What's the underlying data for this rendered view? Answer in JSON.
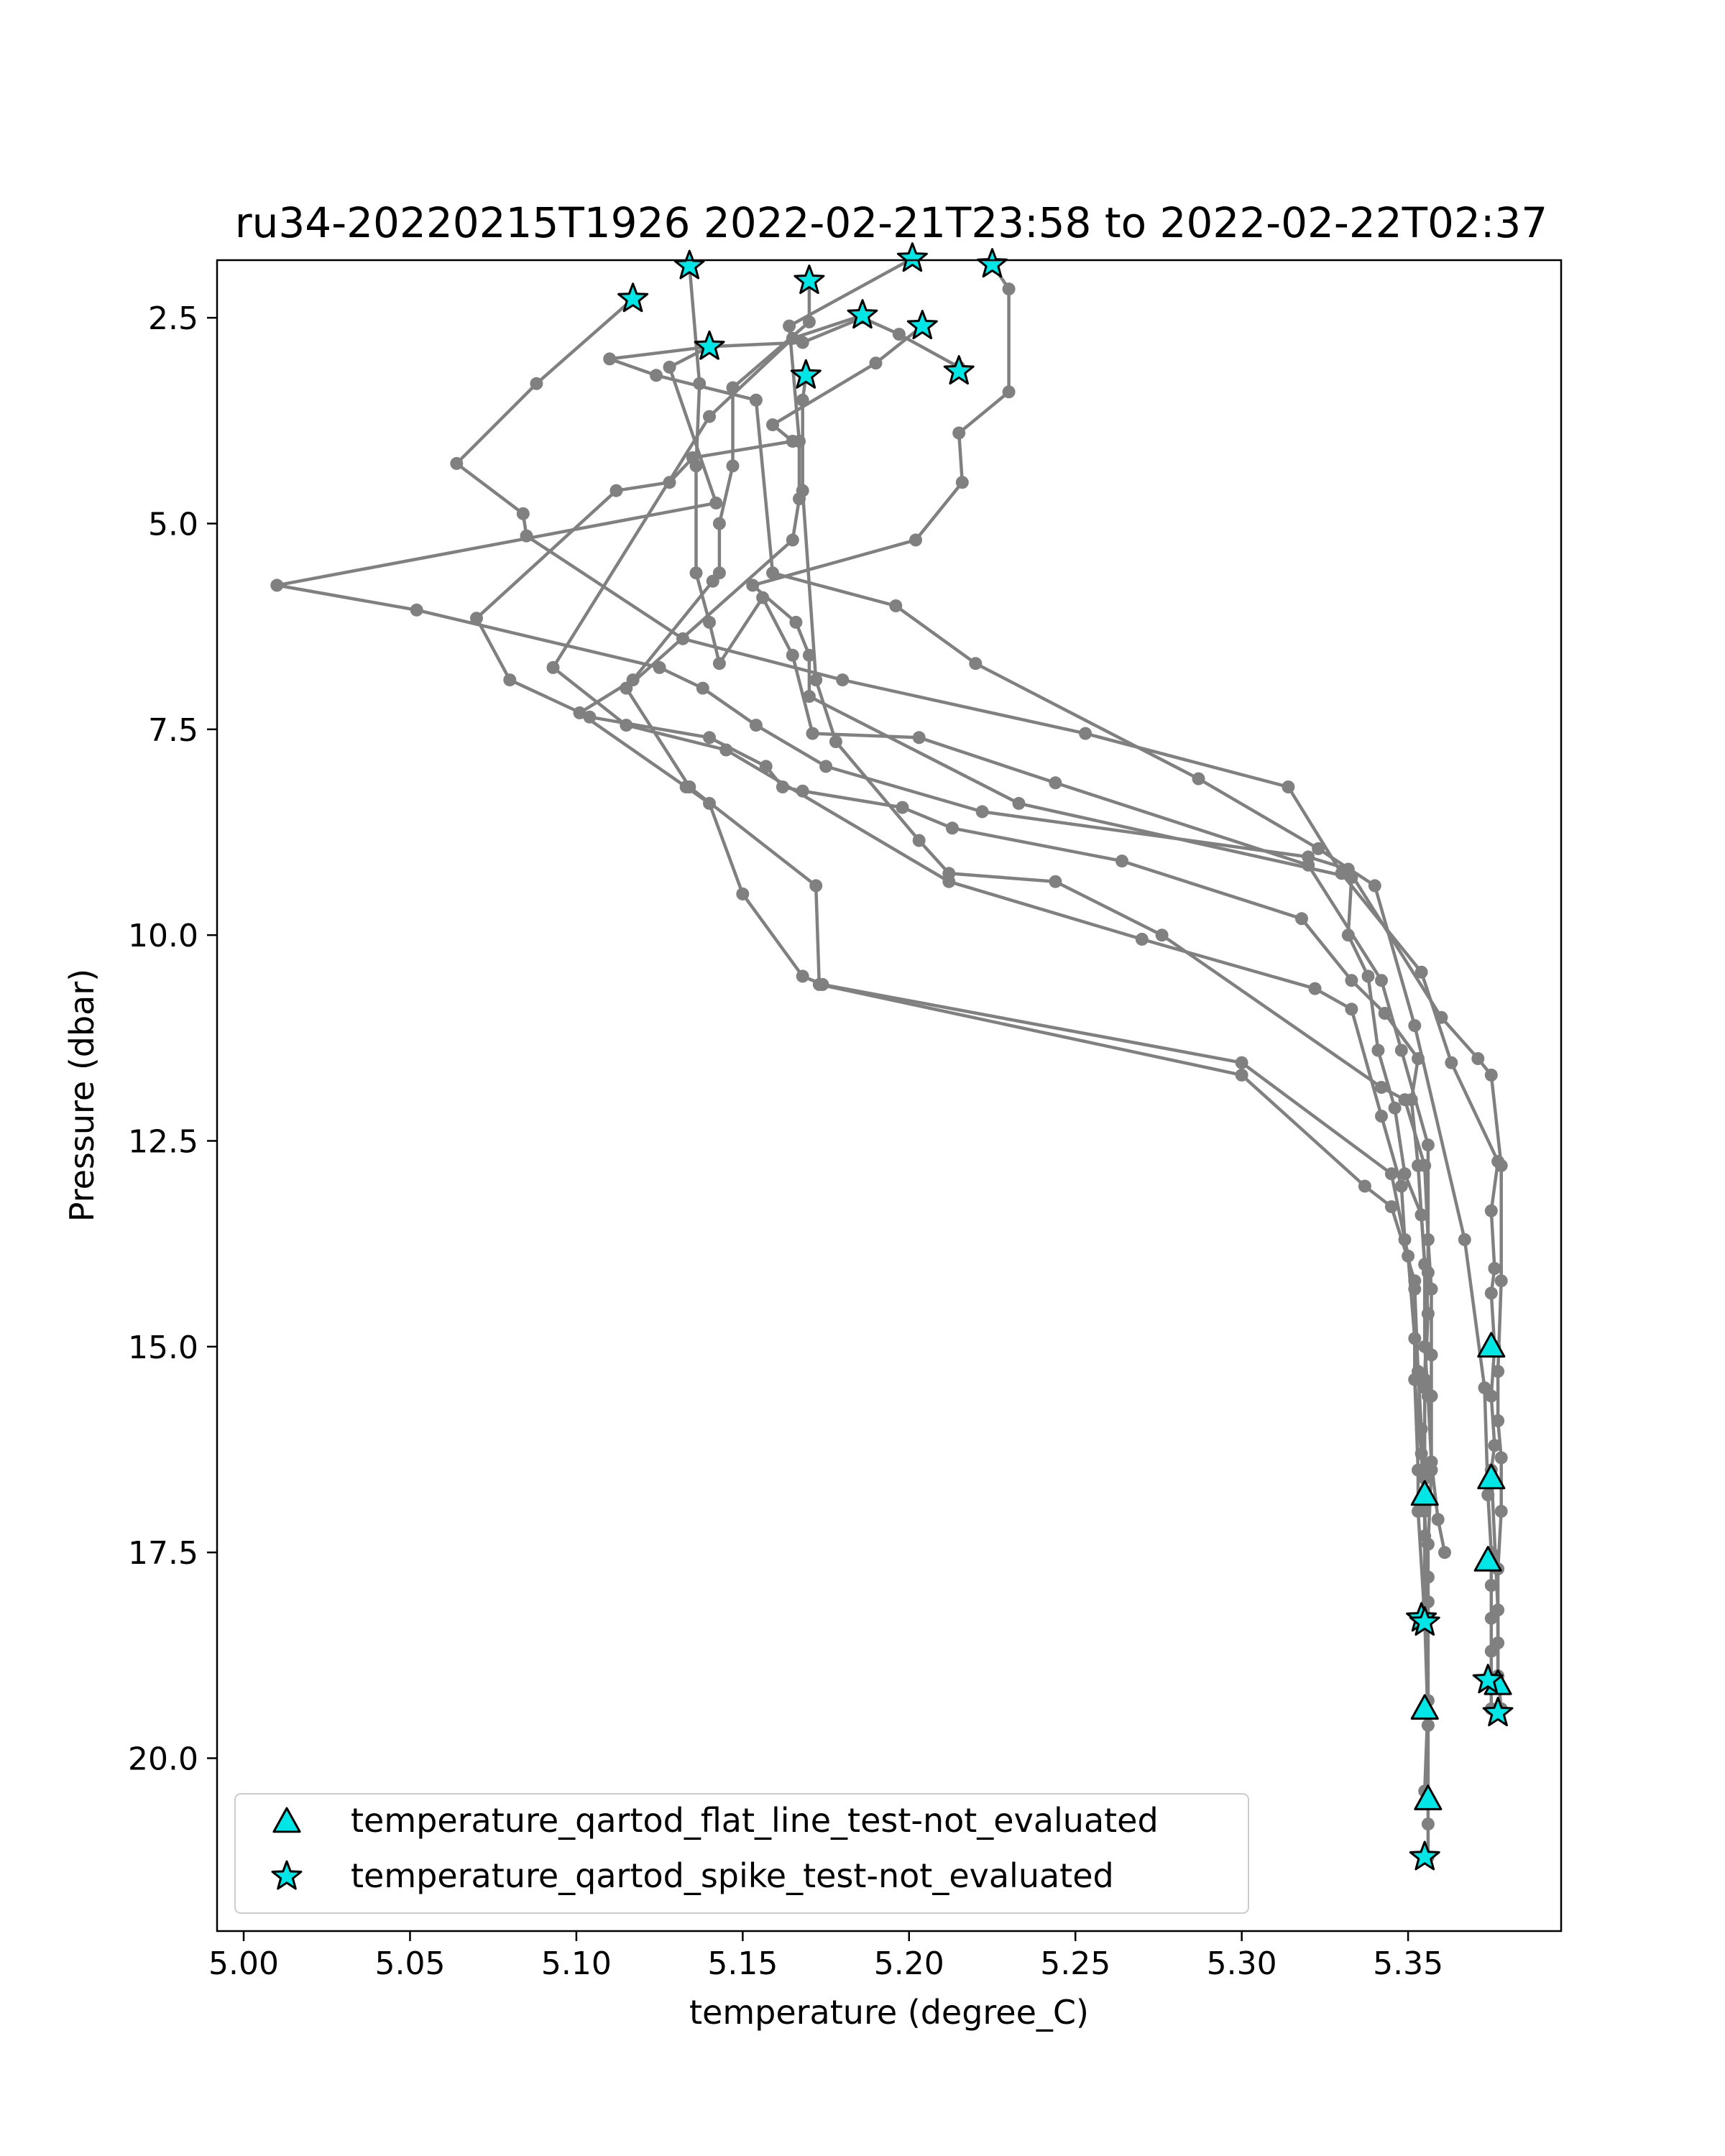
{
  "chart_data": {
    "type": "line",
    "title": "ru34-20220215T1926 2022-02-21T23:58 to 2022-02-22T02:37",
    "xlabel": "temperature (degree_C)",
    "ylabel": "Pressure (dbar)",
    "xlim": [
      4.992,
      5.396
    ],
    "ylim": [
      22.1,
      1.8
    ],
    "y_inverted": true,
    "x_ticks": [
      5.0,
      5.05,
      5.1,
      5.15,
      5.2,
      5.25,
      5.3,
      5.35
    ],
    "x_tick_labels": [
      "5.00",
      "5.05",
      "5.10",
      "5.15",
      "5.20",
      "5.25",
      "5.30",
      "5.35"
    ],
    "y_ticks": [
      2.5,
      5.0,
      7.5,
      10.0,
      12.5,
      15.0,
      17.5,
      20.0
    ],
    "y_tick_labels": [
      "2.5",
      "5.0",
      "7.5",
      "10.0",
      "12.5",
      "15.0",
      "17.5",
      "20.0"
    ],
    "grid": false,
    "legend_position": "lower-left",
    "profile_color": "#808080",
    "flag_color": "#00e5e5",
    "profiles": [
      {
        "x": [
          5.117,
          5.088,
          5.064,
          5.084,
          5.085,
          5.132,
          5.18,
          5.253,
          5.314,
          5.33,
          5.354,
          5.363,
          5.377,
          5.375,
          5.376,
          5.375,
          5.376,
          5.375,
          5.376,
          5.375,
          5.377,
          5.377
        ],
        "y": [
          2.27,
          3.3,
          4.27,
          4.88,
          5.15,
          6.4,
          6.9,
          7.55,
          8.2,
          9.25,
          10.45,
          11.55,
          12.75,
          13.35,
          14.05,
          14.35,
          15.0,
          15.6,
          16.2,
          16.5,
          18.2,
          19.1
        ]
      },
      {
        "x": [
          5.134,
          5.137,
          5.136,
          5.136,
          5.14,
          5.143,
          5.156,
          5.165,
          5.171,
          5.203,
          5.244,
          5.32,
          5.342,
          5.348,
          5.356,
          5.356,
          5.355,
          5.355,
          5.355
        ],
        "y": [
          1.87,
          3.3,
          4.3,
          5.6,
          6.2,
          6.7,
          5.9,
          6.6,
          7.55,
          7.6,
          8.15,
          9.15,
          10.55,
          11.4,
          12.55,
          14.1,
          15.4,
          16.5,
          18.3
        ]
      },
      {
        "x": [
          5.17,
          5.17,
          5.147,
          5.147,
          5.143,
          5.143,
          5.141,
          5.117,
          5.101,
          5.133,
          5.14,
          5.15,
          5.168,
          5.174,
          5.3,
          5.345,
          5.35,
          5.352,
          5.352,
          5.353,
          5.353,
          5.355
        ],
        "y": [
          2.05,
          2.55,
          3.35,
          4.3,
          5.0,
          5.6,
          5.7,
          6.9,
          7.3,
          8.2,
          8.4,
          9.5,
          10.5,
          10.6,
          11.55,
          12.9,
          13.9,
          14.9,
          15.4,
          16.5,
          17.0,
          18.3
        ]
      },
      {
        "x": [
          5.201,
          5.164,
          5.167,
          5.167,
          5.165,
          5.115,
          5.134,
          5.172,
          5.173,
          5.3,
          5.337,
          5.345,
          5.352,
          5.352,
          5.354,
          5.355,
          5.356,
          5.356,
          5.355
        ],
        "y": [
          1.78,
          2.6,
          4.0,
          4.7,
          5.2,
          7.0,
          8.2,
          9.4,
          10.6,
          11.7,
          13.05,
          13.3,
          14.2,
          15.4,
          16.3,
          17.0,
          18.1,
          19.3,
          20.4
        ]
      },
      {
        "x": [
          5.169,
          5.168,
          5.168,
          5.172,
          5.178,
          5.203,
          5.212,
          5.244,
          5.276,
          5.342,
          5.349,
          5.355,
          5.356,
          5.357,
          5.357,
          5.357,
          5.357,
          5.356,
          5.356
        ],
        "y": [
          3.2,
          3.5,
          4.6,
          6.9,
          7.65,
          8.85,
          9.25,
          9.35,
          10.0,
          11.85,
          12.0,
          12.8,
          13.7,
          14.3,
          15.1,
          15.6,
          16.5,
          17.4,
          18.3
        ]
      },
      {
        "x": [
          5.186,
          5.165,
          5.14,
          5.093,
          5.115,
          5.145,
          5.212,
          5.27,
          5.322,
          5.333,
          5.342,
          5.348,
          5.349,
          5.352,
          5.353,
          5.354,
          5.355,
          5.355,
          5.355,
          5.356,
          5.355,
          5.356,
          5.356,
          5.356
        ],
        "y": [
          2.47,
          2.75,
          3.7,
          6.75,
          7.45,
          7.75,
          9.35,
          10.05,
          10.65,
          10.9,
          12.2,
          13.05,
          13.7,
          14.3,
          15.3,
          16.0,
          16.6,
          16.9,
          17.3,
          17.8,
          18.3,
          19.6,
          20.8,
          21.2
        ]
      },
      {
        "x": [
          5.204,
          5.19,
          5.159,
          5.165,
          5.135,
          5.128,
          5.112,
          5.07,
          5.08,
          5.104,
          5.14,
          5.157,
          5.162,
          5.168,
          5.198,
          5.213,
          5.264,
          5.318,
          5.333,
          5.343,
          5.353,
          5.351,
          5.353,
          5.354,
          5.355,
          5.356,
          5.355
        ],
        "y": [
          2.6,
          3.05,
          3.8,
          4.0,
          4.2,
          4.5,
          4.6,
          6.15,
          6.9,
          7.35,
          7.6,
          7.95,
          8.2,
          8.25,
          8.45,
          8.7,
          9.1,
          9.8,
          10.55,
          10.95,
          11.5,
          12.0,
          12.8,
          13.4,
          14.0,
          14.6,
          15.5
        ]
      },
      {
        "x": [
          5.225,
          5.23,
          5.23,
          5.215,
          5.216,
          5.202,
          5.153,
          5.166,
          5.17,
          5.17,
          5.233,
          5.333,
          5.332,
          5.338,
          5.341,
          5.346,
          5.349,
          5.354,
          5.355,
          5.355,
          5.356,
          5.357,
          5.359,
          5.361
        ],
        "y": [
          1.85,
          2.15,
          3.4,
          3.9,
          4.5,
          5.2,
          5.75,
          6.2,
          6.6,
          7.1,
          8.4,
          9.3,
          10.0,
          10.5,
          11.4,
          12.1,
          12.9,
          13.4,
          14.0,
          15.0,
          15.6,
          16.4,
          17.1,
          17.5
        ]
      },
      {
        "x": [
          5.215,
          5.197,
          5.186,
          5.168,
          5.14,
          5.11,
          5.124,
          5.154,
          5.159,
          5.196,
          5.22,
          5.287,
          5.323,
          5.34,
          5.352,
          5.367,
          5.373,
          5.374,
          5.375,
          5.375,
          5.375,
          5.375,
          5.375,
          5.375
        ],
        "y": [
          3.1,
          2.7,
          2.5,
          2.8,
          2.85,
          3.0,
          3.2,
          3.5,
          5.6,
          6.0,
          6.7,
          8.1,
          8.95,
          9.4,
          11.1,
          13.7,
          15.5,
          16.8,
          17.5,
          17.9,
          18.3,
          18.7,
          19.1,
          19.4
        ]
      },
      {
        "x": [
          5.14,
          5.128,
          5.142,
          5.01,
          5.052,
          5.125,
          5.138,
          5.154,
          5.175,
          5.222,
          5.32,
          5.332,
          5.36,
          5.371,
          5.375,
          5.378,
          5.378,
          5.377,
          5.377,
          5.378,
          5.378,
          5.377,
          5.377,
          5.377,
          5.378
        ],
        "y": [
          2.85,
          3.1,
          4.75,
          5.75,
          6.05,
          6.75,
          7.0,
          7.45,
          7.95,
          8.5,
          9.05,
          9.2,
          11.0,
          11.5,
          11.7,
          12.8,
          14.2,
          15.3,
          15.9,
          16.35,
          17.0,
          17.7,
          18.6,
          19.0,
          19.4
        ]
      }
    ],
    "flagged_points": [
      {
        "series": "temperature_qartod_flat_line_test-not_evaluated",
        "marker": "triangle",
        "x": [
          5.375,
          5.375,
          5.355,
          5.374,
          5.377,
          5.355,
          5.356
        ],
        "y": [
          15.0,
          16.6,
          16.8,
          17.6,
          19.1,
          19.4,
          20.5
        ]
      },
      {
        "series": "temperature_qartod_spike_test-not_evaluated",
        "marker": "star",
        "x": [
          5.117,
          5.134,
          5.17,
          5.201,
          5.225,
          5.186,
          5.204,
          5.14,
          5.215,
          5.169,
          5.354,
          5.355,
          5.374,
          5.377,
          5.355
        ],
        "y": [
          2.27,
          1.87,
          2.05,
          1.78,
          1.85,
          2.47,
          2.6,
          2.85,
          3.15,
          3.2,
          18.3,
          18.35,
          19.05,
          19.45,
          21.2
        ]
      }
    ],
    "legend": [
      {
        "marker": "triangle",
        "label": "temperature_qartod_flat_line_test-not_evaluated"
      },
      {
        "marker": "star",
        "label": "temperature_qartod_spike_test-not_evaluated"
      }
    ]
  }
}
